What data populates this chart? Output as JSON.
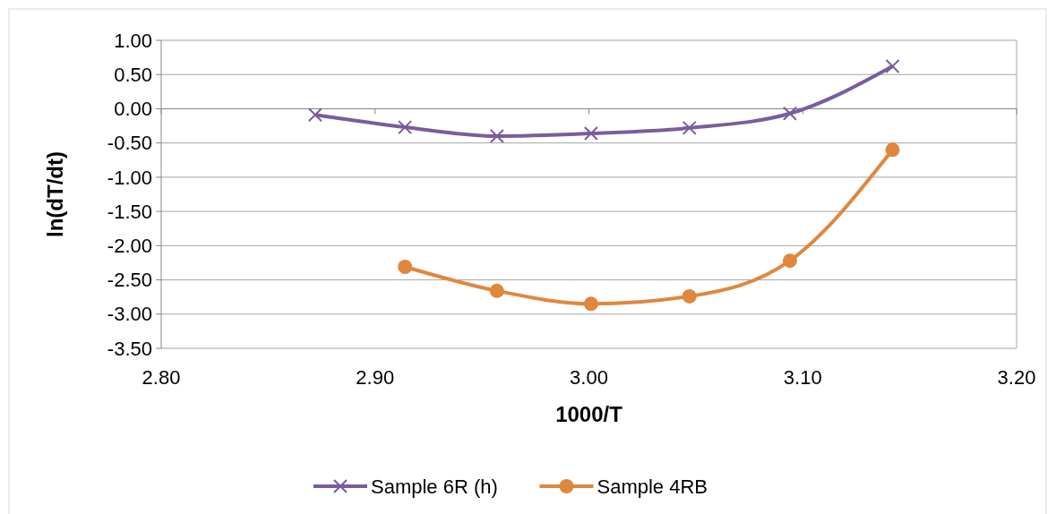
{
  "chart_data": {
    "type": "line",
    "xlabel": "1000/T",
    "ylabel": "ln(dT/dt)",
    "xlim": [
      2.8,
      3.2
    ],
    "xticks": [
      {
        "value": 2.8,
        "label": "2.80"
      },
      {
        "value": 2.9,
        "label": "2.90"
      },
      {
        "value": 3.0,
        "label": "3.00"
      },
      {
        "value": 3.1,
        "label": "3.10"
      },
      {
        "value": 3.2,
        "label": "3.20"
      }
    ],
    "ylim": [
      -3.5,
      1
    ],
    "yticks": [
      {
        "value": -3.5,
        "label": "-3.50"
      },
      {
        "value": -3,
        "label": "-3.00"
      },
      {
        "value": -2.5,
        "label": "-2.50"
      },
      {
        "value": -2,
        "label": "-2.00"
      },
      {
        "value": -1.5,
        "label": "-1.50"
      },
      {
        "value": -1,
        "label": "-1.00"
      },
      {
        "value": -0.5,
        "label": "-0.50"
      },
      {
        "value": 0,
        "label": "0.00"
      },
      {
        "value": 0.5,
        "label": "0.50"
      },
      {
        "value": 1,
        "label": "1.00"
      }
    ],
    "grid": "y",
    "legend": "bottom",
    "series": [
      {
        "name": "Sample 6R (h)",
        "color": "#7a5c9e",
        "marker": "cross",
        "x": [
          2.872,
          2.914,
          2.957,
          3.001,
          3.047,
          3.094,
          3.142
        ],
        "values": [
          -0.09,
          -0.27,
          -0.4,
          -0.36,
          -0.28,
          -0.07,
          0.62
        ]
      },
      {
        "name": "Sample 4RB",
        "color": "#e0873e",
        "marker": "circle",
        "x": [
          2.914,
          2.957,
          3.001,
          3.047,
          3.094,
          3.142
        ],
        "values": [
          -2.31,
          -2.66,
          -2.85,
          -2.74,
          -2.22,
          -0.6
        ]
      }
    ]
  }
}
